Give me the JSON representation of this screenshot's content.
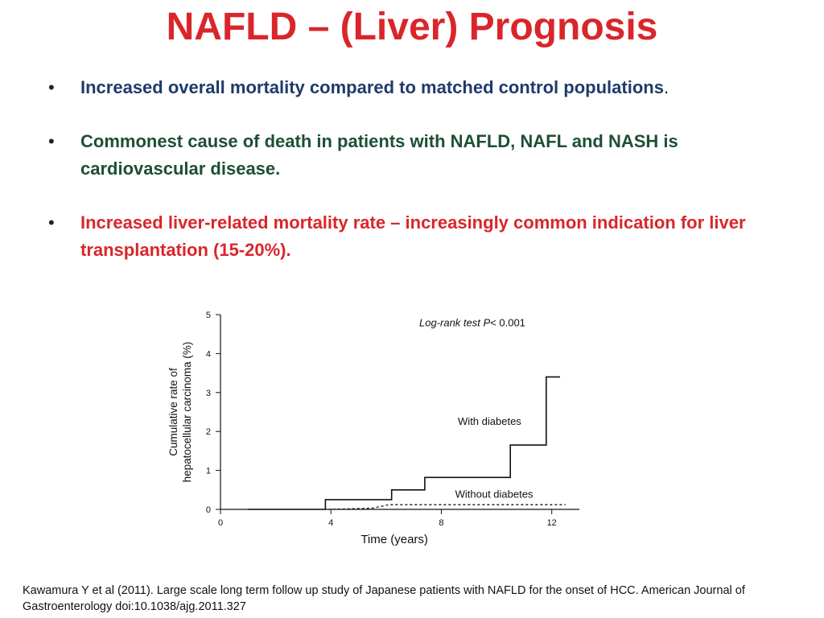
{
  "slide": {
    "title": "NAFLD – (Liver) Prognosis",
    "bullet_marker": "•",
    "bullets": [
      {
        "text": "Increased overall mortality compared to matched control populations",
        "trailing": "."
      },
      {
        "text": "Commonest cause of death in patients with NAFLD, NAFL and NASH is cardiovascular disease.",
        "trailing": ""
      },
      {
        "text": "Increased liver-related mortality rate – increasingly common indication for liver transplantation (15-20%).",
        "trailing": ""
      }
    ],
    "citation": "Kawamura Y et al (2011). Large scale long term follow up study of Japanese patients with NAFLD for the onset of HCC. American Journal of Gastroenterology doi:10.1038/ajg.2011.327",
    "colors": {
      "title": "#d9262b",
      "bullet1": "#1f3a6b",
      "bullet2": "#1d4f35",
      "bullet3": "#d9262b"
    }
  },
  "chart_data": {
    "type": "line",
    "xlabel": "Time (years)",
    "ylabel_lines": [
      "Cumulative rate of",
      "hepatocellular carcinoma (%)"
    ],
    "xlim": [
      0,
      13
    ],
    "ylim": [
      0,
      5
    ],
    "xticks": [
      0,
      4,
      8,
      12
    ],
    "yticks": [
      0,
      1,
      2,
      3,
      4,
      5
    ],
    "annotation": {
      "prefix": "Log-rank test ",
      "italic_var": "P",
      "suffix": "< 0.001"
    },
    "series": [
      {
        "name": "With diabetes",
        "style": "solid",
        "points": [
          [
            1,
            0
          ],
          [
            3.8,
            0
          ],
          [
            3.8,
            0.25
          ],
          [
            6.2,
            0.25
          ],
          [
            6.2,
            0.5
          ],
          [
            7.4,
            0.5
          ],
          [
            7.4,
            0.82
          ],
          [
            10.5,
            0.82
          ],
          [
            10.5,
            1.65
          ],
          [
            11.8,
            1.65
          ],
          [
            11.8,
            3.4
          ],
          [
            12.3,
            3.4
          ]
        ]
      },
      {
        "name": "Without diabetes",
        "style": "dashed",
        "points": [
          [
            3.9,
            0
          ],
          [
            5.5,
            0.03
          ],
          [
            6.1,
            0.12
          ],
          [
            12.5,
            0.12
          ]
        ]
      }
    ]
  }
}
